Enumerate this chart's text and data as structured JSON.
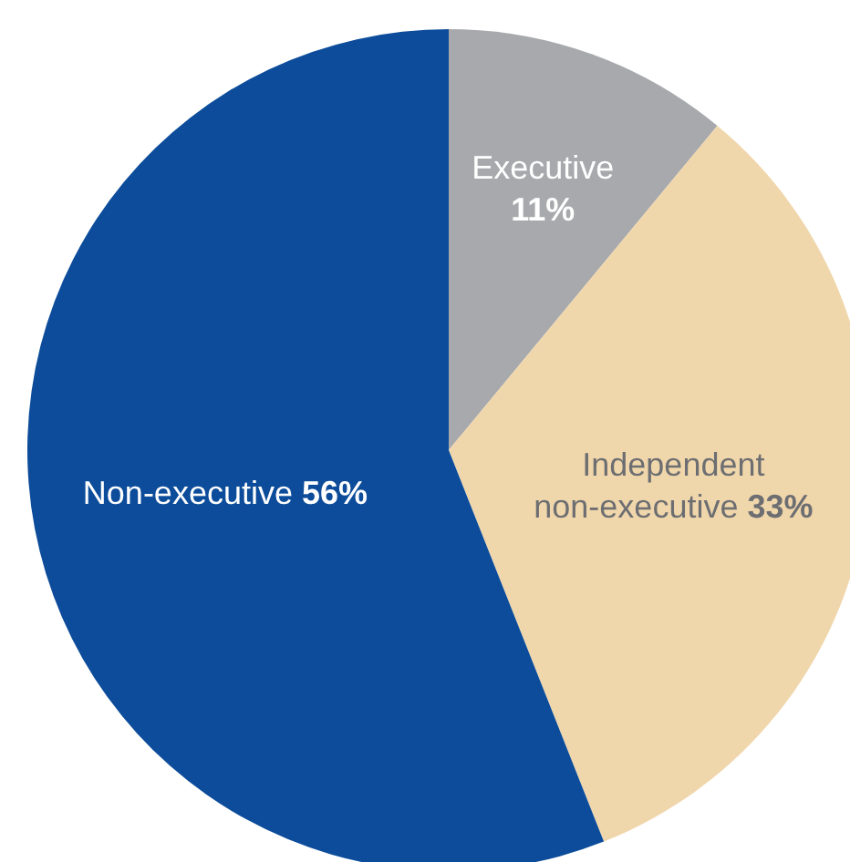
{
  "chart_data": {
    "type": "pie",
    "categories": [
      "Executive",
      "Independent non-executive",
      "Non-executive"
    ],
    "values": [
      11,
      33,
      56
    ],
    "value_labels": [
      "11%",
      "33%",
      "56%"
    ],
    "colors": [
      "#a7a9ac",
      "#f0d6ab",
      "#0c4c9a"
    ],
    "legend": false
  }
}
